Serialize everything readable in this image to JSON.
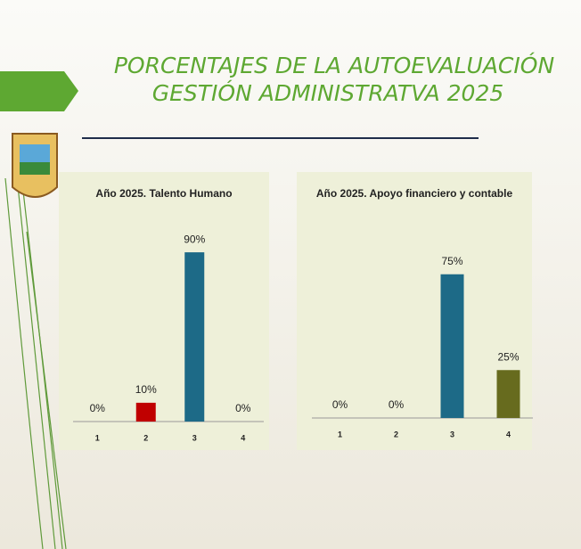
{
  "slide": {
    "title": [
      "PORCENTAJES DE LA AUTOEVALUACIÓN",
      "GESTIÓN ADMINISTRATVA 2025"
    ]
  },
  "chart_data": [
    {
      "type": "bar",
      "title": "Año 2025. Talento Humano",
      "categories": [
        "1",
        "2",
        "3",
        "4"
      ],
      "values": [
        0,
        10,
        90,
        0
      ],
      "value_labels": [
        "0%",
        "10%",
        "90%",
        "0%"
      ],
      "colors": [
        "#c00000",
        "#c00000",
        "#1d6a87",
        "#1d6a87"
      ],
      "ylim": [
        0,
        100
      ]
    },
    {
      "type": "bar",
      "title": "Año 2025. Apoyo financiero y contable",
      "categories": [
        "1",
        "2",
        "3",
        "4"
      ],
      "values": [
        0,
        0,
        75,
        25
      ],
      "value_labels": [
        "0%",
        "0%",
        "75%",
        "25%"
      ],
      "colors": [
        "#1d6a87",
        "#1d6a87",
        "#1d6a87",
        "#676b1e"
      ],
      "ylim": [
        0,
        100
      ]
    }
  ]
}
